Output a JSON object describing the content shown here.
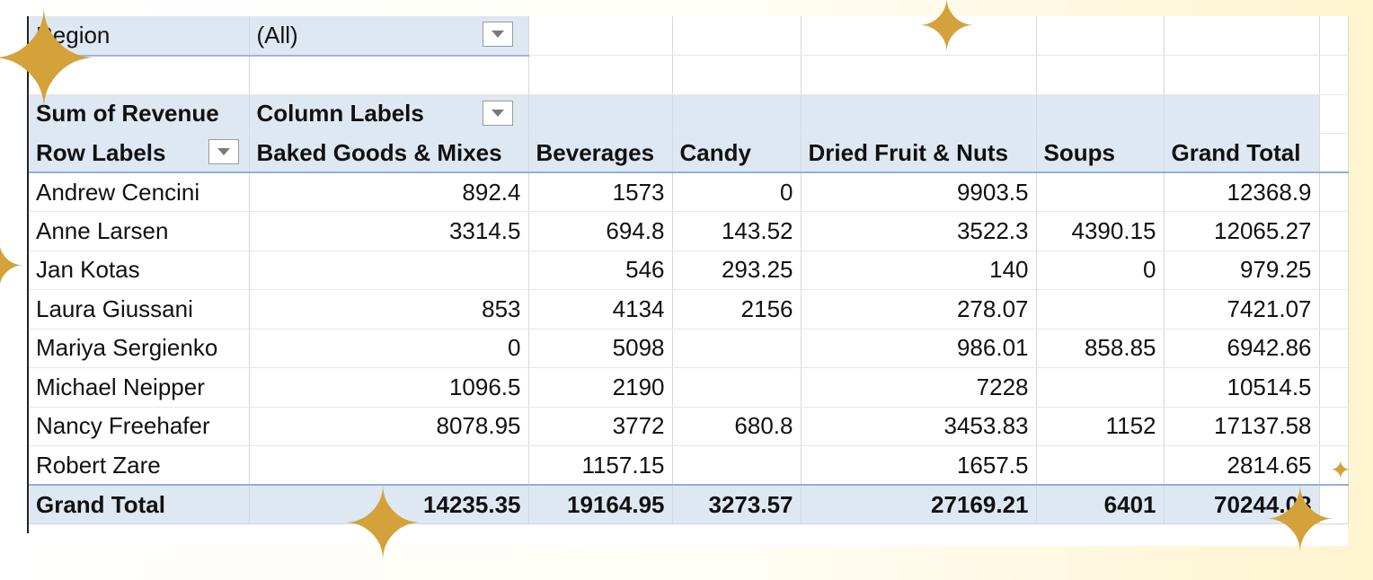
{
  "filter": {
    "label": "Region",
    "value": "(All)"
  },
  "pivot": {
    "value_field": "Sum of Revenue",
    "column_labels": "Column Labels",
    "row_labels": "Row Labels",
    "columns": [
      "Baked Goods & Mixes",
      "Beverages",
      "Candy",
      "Dried Fruit & Nuts",
      "Soups",
      "Grand Total"
    ],
    "rows": [
      {
        "name": "Andrew Cencini",
        "values": [
          "892.4",
          "1573",
          "0",
          "9903.5",
          "",
          "12368.9"
        ]
      },
      {
        "name": "Anne Larsen",
        "values": [
          "3314.5",
          "694.8",
          "143.52",
          "3522.3",
          "4390.15",
          "12065.27"
        ]
      },
      {
        "name": "Jan Kotas",
        "values": [
          "",
          "546",
          "293.25",
          "140",
          "0",
          "979.25"
        ]
      },
      {
        "name": "Laura Giussani",
        "values": [
          "853",
          "4134",
          "2156",
          "278.07",
          "",
          "7421.07"
        ]
      },
      {
        "name": "Mariya Sergienko",
        "values": [
          "0",
          "5098",
          "",
          "986.01",
          "858.85",
          "6942.86"
        ]
      },
      {
        "name": "Michael Neipper",
        "values": [
          "1096.5",
          "2190",
          "",
          "7228",
          "",
          "10514.5"
        ]
      },
      {
        "name": "Nancy Freehafer",
        "values": [
          "8078.95",
          "3772",
          "680.8",
          "3453.83",
          "1152",
          "17137.58"
        ]
      },
      {
        "name": "Robert Zare",
        "values": [
          "",
          "1157.15",
          "",
          "1657.5",
          "",
          "2814.65"
        ]
      }
    ],
    "grand_total": {
      "name": "Grand Total",
      "values": [
        "14235.35",
        "19164.95",
        "3273.57",
        "27169.21",
        "6401",
        "70244.08"
      ]
    }
  },
  "colors": {
    "header_fill": "#dde8f3",
    "header_border": "#8fb0d6",
    "sparkle": "#d4a23a"
  }
}
